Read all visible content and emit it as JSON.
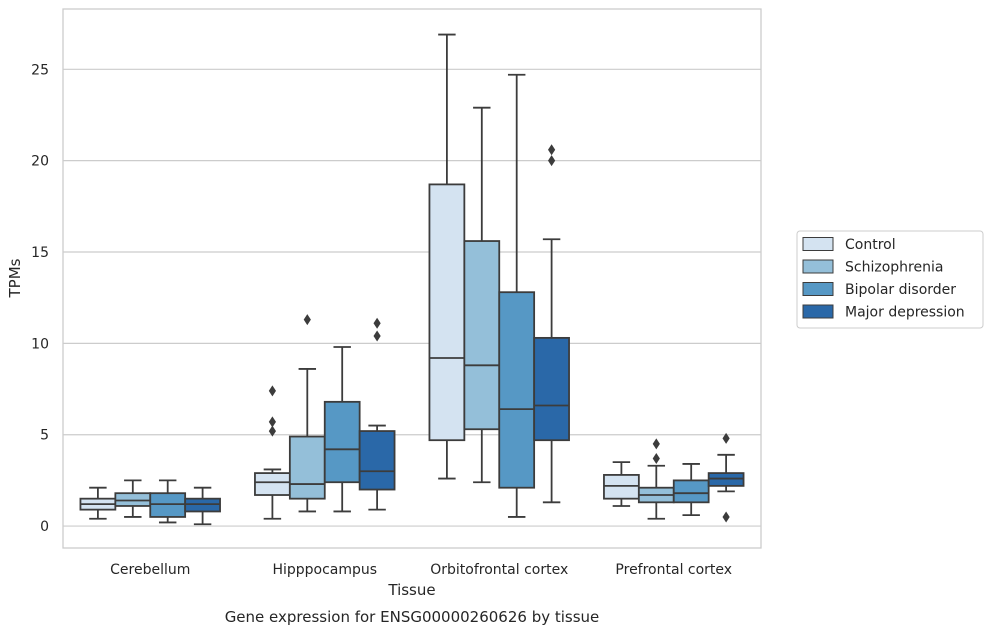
{
  "chart_data": {
    "type": "box",
    "caption": "Gene expression for ENSG00000260626 by tissue",
    "xlabel": "Tissue",
    "ylabel": "TPMs",
    "ylim": [
      -1.2,
      28.3
    ],
    "yticks": [
      0,
      5,
      10,
      15,
      20,
      25
    ],
    "grid": "horizontal",
    "legend_position": "right",
    "categories": [
      "Cerebellum",
      "Hipppocampus",
      "Orbitofrontal cortex",
      "Prefrontal cortex"
    ],
    "series": [
      {
        "name": "Control",
        "color": "#d4e3f1",
        "boxes": [
          {
            "whislo": 0.4,
            "q1": 0.9,
            "med": 1.2,
            "q3": 1.5,
            "whishi": 2.1,
            "fliers": []
          },
          {
            "whislo": 0.4,
            "q1": 1.7,
            "med": 2.4,
            "q3": 2.9,
            "whishi": 3.1,
            "fliers": [
              5.2,
              5.7,
              7.4
            ]
          },
          {
            "whislo": 2.6,
            "q1": 4.7,
            "med": 9.2,
            "q3": 18.7,
            "whishi": 26.9,
            "fliers": []
          },
          {
            "whislo": 1.1,
            "q1": 1.5,
            "med": 2.2,
            "q3": 2.8,
            "whishi": 3.5,
            "fliers": []
          }
        ]
      },
      {
        "name": "Schizophrenia",
        "color": "#94bfd9",
        "boxes": [
          {
            "whislo": 0.5,
            "q1": 1.1,
            "med": 1.4,
            "q3": 1.8,
            "whishi": 2.5,
            "fliers": []
          },
          {
            "whislo": 0.8,
            "q1": 1.5,
            "med": 2.3,
            "q3": 4.9,
            "whishi": 8.6,
            "fliers": [
              11.3
            ]
          },
          {
            "whislo": 2.4,
            "q1": 5.3,
            "med": 8.8,
            "q3": 15.6,
            "whishi": 22.9,
            "fliers": []
          },
          {
            "whislo": 0.4,
            "q1": 1.3,
            "med": 1.7,
            "q3": 2.1,
            "whishi": 3.3,
            "fliers": [
              3.7,
              4.5
            ]
          }
        ]
      },
      {
        "name": "Bipolar disorder",
        "color": "#5698c5",
        "boxes": [
          {
            "whislo": 0.2,
            "q1": 0.5,
            "med": 1.2,
            "q3": 1.8,
            "whishi": 2.5,
            "fliers": []
          },
          {
            "whislo": 0.8,
            "q1": 2.4,
            "med": 4.2,
            "q3": 6.8,
            "whishi": 9.8,
            "fliers": []
          },
          {
            "whislo": 0.5,
            "q1": 2.1,
            "med": 6.4,
            "q3": 12.8,
            "whishi": 24.7,
            "fliers": []
          },
          {
            "whislo": 0.6,
            "q1": 1.3,
            "med": 1.8,
            "q3": 2.5,
            "whishi": 3.4,
            "fliers": []
          }
        ]
      },
      {
        "name": "Major depression",
        "color": "#2a68a8",
        "boxes": [
          {
            "whislo": 0.1,
            "q1": 0.8,
            "med": 1.2,
            "q3": 1.5,
            "whishi": 2.1,
            "fliers": []
          },
          {
            "whislo": 0.9,
            "q1": 2.0,
            "med": 3.0,
            "q3": 5.2,
            "whishi": 5.5,
            "fliers": [
              10.4,
              11.1
            ]
          },
          {
            "whislo": 1.3,
            "q1": 4.7,
            "med": 6.6,
            "q3": 10.3,
            "whishi": 15.7,
            "fliers": [
              20.0,
              20.6
            ]
          },
          {
            "whislo": 1.9,
            "q1": 2.2,
            "med": 2.6,
            "q3": 2.9,
            "whishi": 3.9,
            "fliers": [
              0.5,
              4.8
            ]
          }
        ]
      }
    ]
  }
}
